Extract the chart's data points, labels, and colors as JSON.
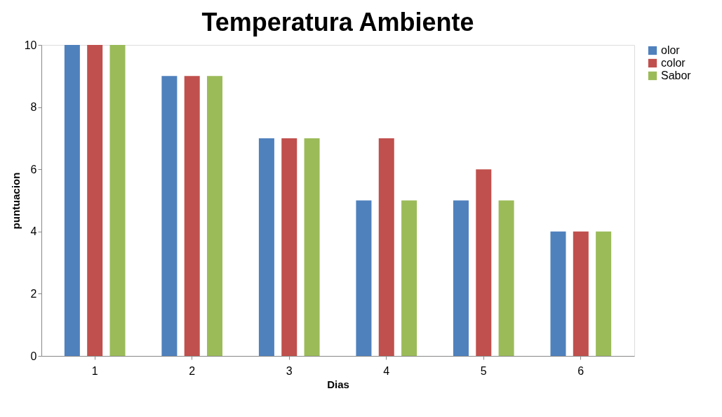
{
  "chart_data": {
    "type": "bar",
    "title": "Temperatura Ambiente",
    "xlabel": "Dias",
    "ylabel": "puntuacion",
    "categories": [
      "1",
      "2",
      "3",
      "4",
      "5",
      "6"
    ],
    "series": [
      {
        "name": "olor",
        "color": "#4f81bd",
        "values": [
          10,
          9,
          7,
          5,
          5,
          4
        ]
      },
      {
        "name": "color",
        "color": "#c0504d",
        "values": [
          10,
          9,
          7,
          7,
          6,
          4
        ]
      },
      {
        "name": "Sabor",
        "color": "#9bbb59",
        "values": [
          10,
          9,
          7,
          5,
          5,
          4
        ]
      }
    ],
    "ylim": [
      0,
      10
    ],
    "yticks": [
      0,
      2,
      4,
      6,
      8,
      10
    ],
    "grid": false,
    "legend": "right"
  }
}
